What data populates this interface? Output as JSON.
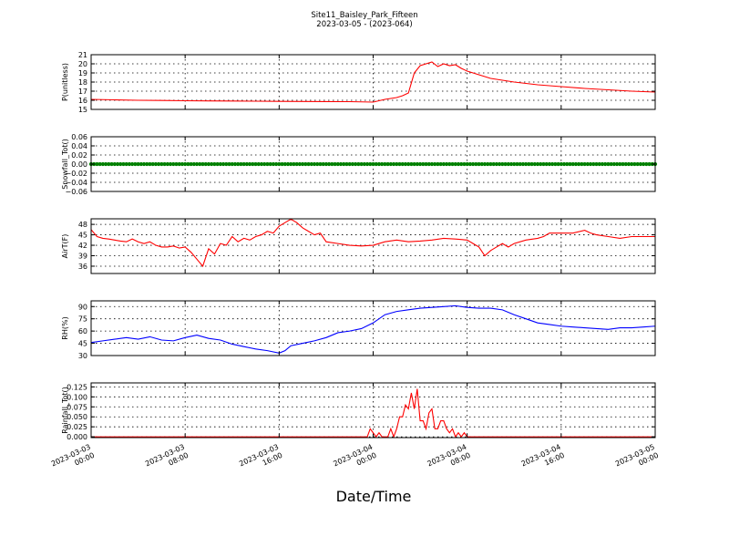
{
  "figure": {
    "title_line1": "Site11_Baisley_Park_Fifteen",
    "title_line2": "2023-03-05 - (2023-064)",
    "xlabel": "Date/Time"
  },
  "chart_data": [
    {
      "type": "line",
      "ylabel": "P(unitless)",
      "color": "#ff0000",
      "ylim": [
        15,
        21
      ],
      "yticks": [
        "15",
        "16",
        "17",
        "18",
        "19",
        "20",
        "21"
      ],
      "grid": true,
      "x_hours": [
        0,
        2,
        4,
        6,
        8,
        10,
        12,
        14,
        16,
        18,
        20,
        22,
        24,
        25,
        26,
        26.5,
        27,
        27.5,
        28,
        28.5,
        29,
        29.5,
        30,
        30.5,
        31,
        31.5,
        32,
        33,
        34,
        36,
        38,
        40,
        42,
        44,
        46,
        48
      ],
      "y": [
        16.1,
        16.05,
        16.0,
        15.98,
        15.95,
        15.93,
        15.92,
        15.9,
        15.88,
        15.87,
        15.86,
        15.85,
        15.8,
        16.1,
        16.3,
        16.5,
        16.8,
        19.0,
        19.8,
        20.0,
        20.2,
        19.7,
        20.0,
        19.8,
        19.9,
        19.5,
        19.2,
        18.8,
        18.4,
        18.0,
        17.7,
        17.5,
        17.3,
        17.15,
        17.0,
        16.9
      ]
    },
    {
      "type": "scatter",
      "ylabel": "Snowfall_Tot()",
      "color": "#008000",
      "ylim": [
        -0.06,
        0.06
      ],
      "yticks": [
        "−0.06",
        "−0.04",
        "−0.02",
        "0.00",
        "0.02",
        "0.04",
        "0.06"
      ],
      "grid": true,
      "x_hours_range": [
        0,
        48
      ],
      "constant_value": 0.0,
      "point_step_hours": 0.25
    },
    {
      "type": "line",
      "ylabel": "AirT(F)",
      "color": "#ff0000",
      "ylim": [
        33.9,
        49.6
      ],
      "yticks": [
        "36",
        "39",
        "42",
        "45",
        "48"
      ],
      "grid": true,
      "x_hours": [
        0,
        0.5,
        1,
        1.5,
        2,
        2.5,
        3,
        3.5,
        4,
        4.5,
        5,
        5.5,
        6,
        6.5,
        7,
        7.5,
        8,
        8.5,
        9,
        9.5,
        10,
        10.5,
        11,
        11.5,
        12,
        12.5,
        13,
        13.5,
        14,
        14.5,
        15,
        15.5,
        16,
        16.5,
        17,
        17.5,
        18,
        18.5,
        19,
        19.5,
        20,
        21,
        22,
        23,
        24,
        25,
        26,
        27,
        28,
        29,
        30,
        31,
        32,
        32.5,
        33,
        33.5,
        34,
        34.5,
        35,
        35.5,
        36,
        37,
        38,
        38.5,
        39,
        40,
        40.5,
        41,
        42,
        42.5,
        43,
        44,
        45,
        46,
        47,
        48
      ],
      "y": [
        46.5,
        44.5,
        44,
        43.8,
        43.5,
        43.2,
        43,
        43.8,
        43,
        42.5,
        43,
        42,
        41.5,
        41.5,
        41.8,
        41.2,
        41.5,
        40,
        38,
        36,
        41,
        39.5,
        42.5,
        42,
        44.5,
        43,
        44,
        43.5,
        44.5,
        45,
        46,
        45.5,
        47.5,
        48.5,
        49.5,
        48.5,
        47,
        46,
        45,
        45.5,
        43,
        42.5,
        42,
        41.8,
        42,
        43,
        43.5,
        43,
        43.2,
        43.5,
        44,
        43.8,
        43.5,
        42.5,
        41.5,
        39,
        40.5,
        41.5,
        42.5,
        41.5,
        42.5,
        43.5,
        44,
        44.5,
        45.5,
        45.5,
        45.5,
        45.5,
        46.3,
        45.5,
        45,
        44.5,
        44,
        44.5,
        44.5,
        44.5
      ]
    },
    {
      "type": "line",
      "ylabel": "RH(%)",
      "color": "#0000ff",
      "ylim": [
        30,
        97
      ],
      "yticks": [
        "30",
        "45",
        "60",
        "75",
        "90"
      ],
      "grid": true,
      "x_hours": [
        0,
        1,
        2,
        3,
        4,
        5,
        6,
        7,
        8,
        9,
        10,
        11,
        12,
        13,
        14,
        15,
        16,
        16.5,
        17,
        18,
        19,
        20,
        21,
        22,
        23,
        24,
        25,
        26,
        27,
        28,
        29,
        30,
        31,
        32,
        33,
        34,
        35,
        36,
        37,
        38,
        39,
        40,
        41,
        42,
        43,
        44,
        45,
        46,
        47,
        48
      ],
      "y": [
        46,
        48,
        50,
        52,
        50,
        53,
        49,
        48,
        52,
        55,
        51,
        49,
        44,
        41,
        38,
        36,
        33,
        36,
        42,
        45,
        48,
        52,
        58,
        60,
        63,
        70,
        80,
        84,
        86,
        88,
        89,
        90,
        91,
        89,
        88,
        88,
        86,
        80,
        75,
        70,
        68,
        66,
        65,
        64,
        63,
        62,
        64,
        64,
        65,
        66
      ]
    },
    {
      "type": "line",
      "ylabel": "Rainfall_Tot()",
      "color": "#ff0000",
      "ylim": [
        -0.002,
        0.135
      ],
      "yticks": [
        "0.000",
        "0.025",
        "0.050",
        "0.075",
        "0.100",
        "0.125"
      ],
      "grid": true,
      "x_hours": [
        0,
        23.5,
        23.75,
        24,
        24.25,
        24.5,
        24.75,
        25,
        25.25,
        25.5,
        25.75,
        26,
        26.25,
        26.5,
        26.75,
        27,
        27.25,
        27.5,
        27.75,
        28,
        28.25,
        28.5,
        28.75,
        29,
        29.25,
        29.5,
        29.75,
        30,
        30.25,
        30.5,
        30.75,
        31,
        31.25,
        31.5,
        31.75,
        32,
        32.25,
        48
      ],
      "y": [
        0,
        0,
        0.02,
        0.01,
        0.0,
        0.01,
        0.0,
        0,
        0.0,
        0.02,
        0.0,
        0.02,
        0.05,
        0.05,
        0.08,
        0.07,
        0.11,
        0.07,
        0.12,
        0.04,
        0.04,
        0.02,
        0.06,
        0.07,
        0.02,
        0.02,
        0.04,
        0.04,
        0.02,
        0.01,
        0.02,
        0.0,
        0.01,
        0.0,
        0.01,
        0.0,
        0,
        0
      ]
    }
  ],
  "x_axis": {
    "xlim_hours": [
      0,
      48
    ],
    "tick_hours": [
      0,
      8,
      16,
      24,
      32,
      40,
      48
    ],
    "tick_labels": [
      [
        "2023-03-03",
        "00:00"
      ],
      [
        "2023-03-03",
        "08:00"
      ],
      [
        "2023-03-03",
        "16:00"
      ],
      [
        "2023-03-04",
        "00:00"
      ],
      [
        "2023-03-04",
        "08:00"
      ],
      [
        "2023-03-04",
        "16:00"
      ],
      [
        "2023-03-05",
        "00:00"
      ]
    ]
  }
}
